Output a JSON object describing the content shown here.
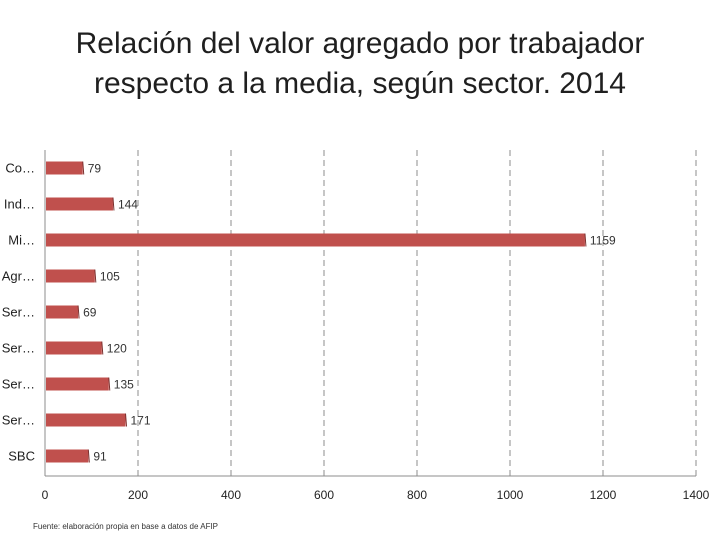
{
  "title_line1": "Relación del valor agregado por trabajador",
  "title_line2": "respecto a la media, según sector. 2014",
  "source": "Fuente: elaboración propia en base a datos de AFIP",
  "chart_data": {
    "type": "bar",
    "orientation": "horizontal",
    "categories": [
      "Co…",
      "Ind…",
      "Mi…",
      "Agr…",
      "Ser…",
      "Ser…",
      "Ser…",
      "Ser…",
      "SBC"
    ],
    "values": [
      79,
      144,
      1159,
      105,
      69,
      120,
      135,
      171,
      91
    ],
    "xlim": [
      0,
      1400
    ],
    "xticks": [
      0,
      200,
      400,
      600,
      800,
      1000,
      1200,
      1400
    ],
    "grid": "vertical dashed",
    "bar_color": "#c0504d"
  }
}
